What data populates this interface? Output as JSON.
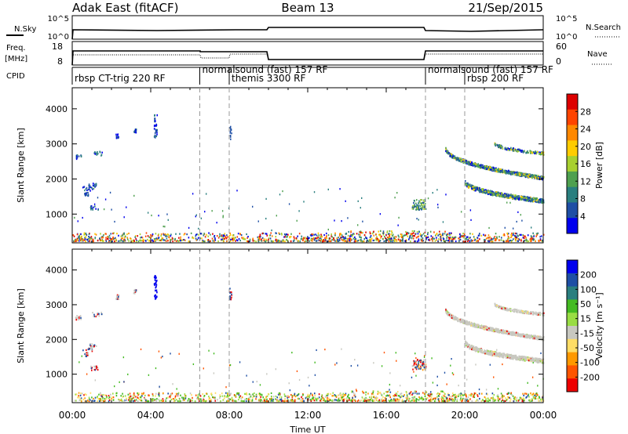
{
  "header": {
    "station": "Adak East (fitACF)",
    "beam": "Beam 13",
    "date": "21/Sep/2015"
  },
  "panels": {
    "nsky": {
      "label": "N.Sky",
      "ticks": [
        "10^5",
        "10^0"
      ]
    },
    "nsearch": {
      "label": "N.Search",
      "ticks": [
        "10^5",
        "10^0"
      ]
    },
    "freq": {
      "label_top": "Freq.",
      "label_unit": "[MHz]",
      "ticks": [
        "18",
        "8"
      ]
    },
    "nave": {
      "label": "Nave",
      "ticks": [
        "60",
        "0"
      ]
    },
    "cpid": {
      "label": "CPID"
    }
  },
  "cpid_labels": [
    {
      "text": "rbsp CT-trig 220 RF",
      "start_h": 0.0
    },
    {
      "text": "normalsound (fast) 157 RF",
      "start_h": 6.5
    },
    {
      "text": "themis 3300 RF",
      "start_h": 8.0
    },
    {
      "text": "normalsound (fast) 157 RF",
      "start_h": 18.0
    },
    {
      "text": "rbsp 200 RF",
      "start_h": 20.0
    }
  ],
  "xaxis": {
    "label": "Time UT",
    "ticks": [
      "00:00",
      "04:00",
      "08:00",
      "12:00",
      "16:00",
      "20:00",
      "00:00"
    ],
    "range_h": [
      0,
      24
    ]
  },
  "colors": {
    "power": [
      "#0000ee",
      "#1e4fa5",
      "#2a7f7f",
      "#4fa04f",
      "#a8d030",
      "#ffcc00",
      "#ff8800",
      "#ff4400",
      "#dd0000"
    ],
    "velocity": [
      "#ee0000",
      "#ff5500",
      "#ff9900",
      "#ffdd66",
      "#c8c8c0",
      "#99dd44",
      "#44bb22",
      "#2a7f7f",
      "#1e4fa5",
      "#0000ee"
    ]
  },
  "chart_data": [
    {
      "type": "heatmap",
      "ylabel": "Slant Range [km]",
      "ylim": [
        180,
        4600
      ],
      "yticks": [
        1000,
        2000,
        3000,
        4000
      ],
      "colorbar": {
        "label": "Power [dB]",
        "ticks": [
          "28",
          "24",
          "20",
          "16",
          "12",
          "8",
          "4"
        ],
        "range": [
          0,
          30
        ]
      },
      "features": [
        {
          "desc": "ground scatter band",
          "t": [
            0,
            24
          ],
          "range_km": [
            180,
            480
          ],
          "power": "mixed 4-28"
        },
        {
          "desc": "early patches",
          "t": [
            0,
            1.5
          ],
          "range_km": [
            1000,
            2700
          ],
          "power": "8-12"
        },
        {
          "desc": "isolated echoes near 04:00",
          "t": [
            4.0,
            4.3
          ],
          "range_km": [
            3100,
            3800
          ],
          "power": "4-8"
        },
        {
          "desc": "patch near 17:30",
          "t": [
            17.3,
            18.0
          ],
          "range_km": [
            1100,
            1400
          ],
          "power": "8-16"
        },
        {
          "desc": "descending arc upper",
          "t": [
            19.0,
            24.0
          ],
          "range_km": [
            2000,
            2800
          ],
          "power": "8-24"
        },
        {
          "desc": "descending arc lower",
          "t": [
            20.0,
            24.0
          ],
          "range_km": [
            1300,
            1900
          ],
          "power": "8-16"
        }
      ]
    },
    {
      "type": "heatmap",
      "ylabel": "Slant Range [km]",
      "ylim": [
        180,
        4600
      ],
      "yticks": [
        1000,
        2000,
        3000,
        4000
      ],
      "colorbar": {
        "label": "Velocity [m s⁻¹]",
        "ticks": [
          "200",
          "100",
          "50",
          "15",
          "-15",
          "-50",
          "-100",
          "-200"
        ],
        "range": [
          -250,
          250
        ]
      },
      "features": [
        {
          "desc": "ground scatter band",
          "t": [
            0,
            24
          ],
          "range_km": [
            180,
            480
          ],
          "velocity": "mostly -15 to 50"
        },
        {
          "desc": "descending arcs",
          "t": [
            19.0,
            24.0
          ],
          "range_km": [
            1300,
            2800
          ],
          "velocity": "-15 to 15"
        }
      ]
    }
  ],
  "dashed_times_h": [
    6.5,
    8.0,
    18.0,
    20.0
  ]
}
